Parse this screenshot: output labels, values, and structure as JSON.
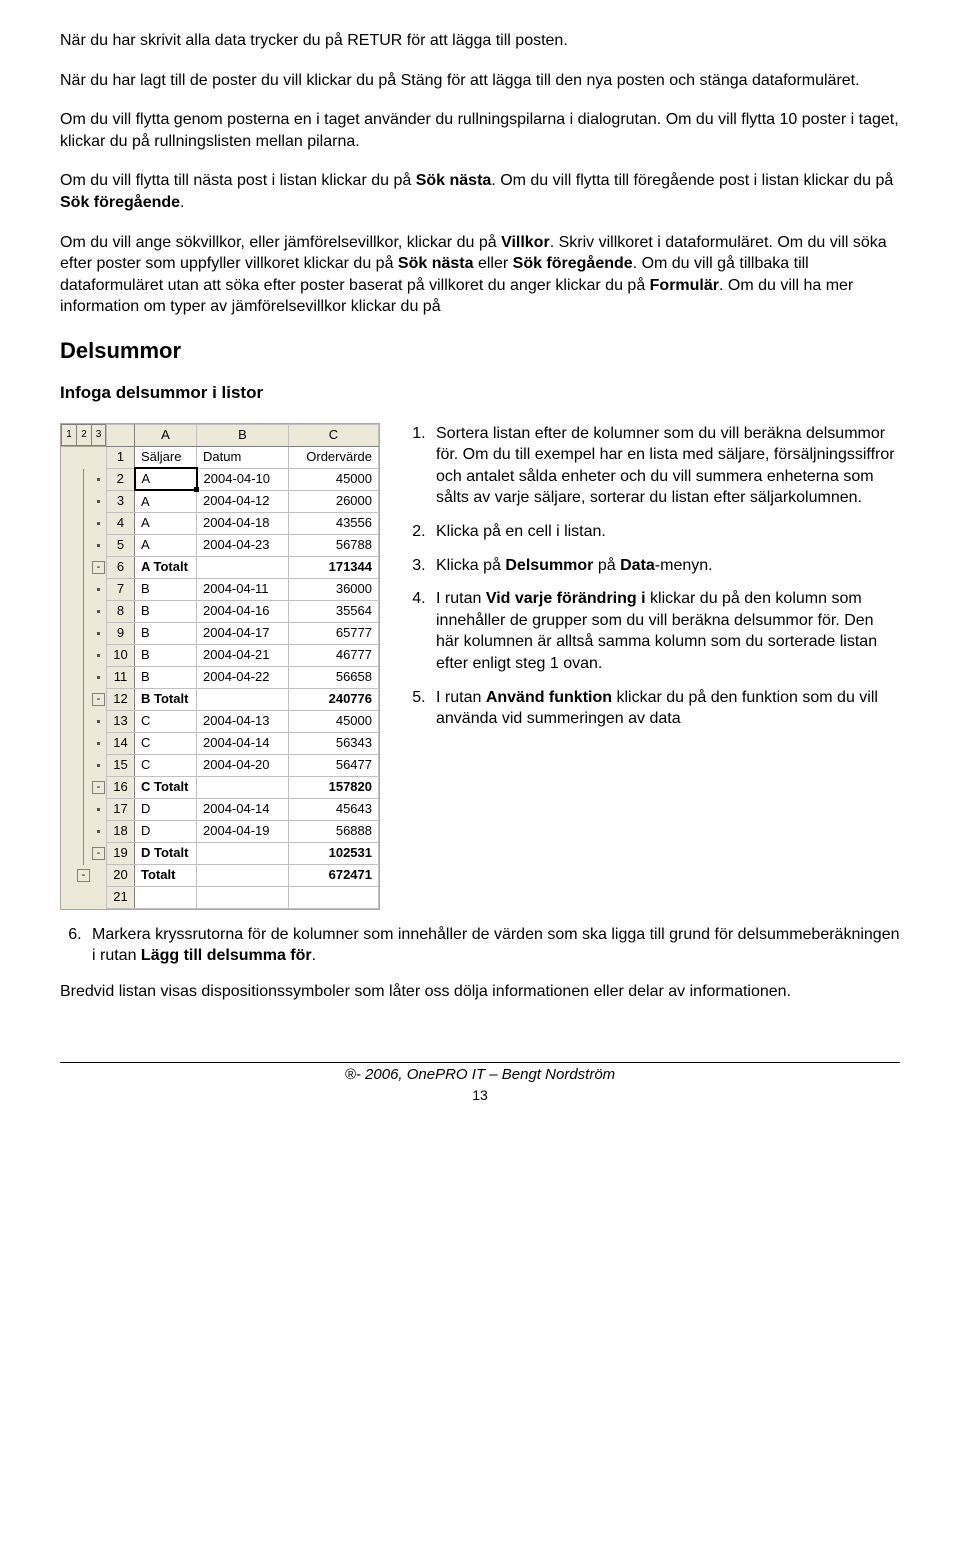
{
  "paras": {
    "p1": "När du har skrivit alla data trycker du på RETUR för att lägga till posten.",
    "p2": "När du har lagt till de poster du vill klickar du på Stäng för att lägga till den nya posten och stänga dataformuläret.",
    "p3": "Om du vill flytta genom posterna en i taget använder du rullningspilarna i dialogrutan. Om du vill flytta 10 poster i taget, klickar du på rullningslisten mellan pilarna.",
    "p4a": "Om du vill flytta till nästa post i listan klickar du på ",
    "p4b": "Sök nästa",
    "p4c": ". Om du vill flytta till föregående post i listan klickar du på ",
    "p4d": "Sök föregående",
    "p4e": ".",
    "p5a": "Om du vill ange sökvillkor, eller jämförelsevillkor, klickar du på ",
    "p5b": "Villkor",
    "p5c": ". Skriv villkoret i dataformuläret. Om du vill söka efter poster som uppfyller villkoret klickar du på ",
    "p5d": "Sök nästa",
    "p5e": " eller ",
    "p5f": "Sök föregående",
    "p5g": ". Om du vill gå tillbaka till dataformuläret utan att söka efter poster baserat på villkoret du anger klickar du på ",
    "p5h": "Formulär",
    "p5i": ". Om du vill ha mer information om typer av jämförelsevillkor klickar du på"
  },
  "h2": "Delsummor",
  "h3": "Infoga delsummor i listor",
  "steps": {
    "s1": "Sortera listan efter de kolumner som du vill beräkna delsummor för. Om du till exempel har en lista med säljare, försäljningssiffror och antalet sålda enheter och du vill summera enheterna som sålts av varje säljare, sorterar du listan efter säljarkolumnen.",
    "s2": "Klicka på en cell i listan.",
    "s3a": "Klicka på ",
    "s3b": "Delsummor",
    "s3c": " på ",
    "s3d": "Data",
    "s3e": "-menyn.",
    "s4a": "I rutan ",
    "s4b": "Vid varje förändring i",
    "s4c": " klickar du på den kolumn som innehåller de grupper som du vill beräkna delsummor för. Den här kolumnen är alltså samma kolumn som du sorterade listan efter enligt steg 1 ovan.",
    "s5a": "I rutan ",
    "s5b": "Använd funktion",
    "s5c": " klickar du på den funktion som du vill använda vid summeringen av data",
    "s6a": "Markera kryssrutorna för de kolumner som innehåller de värden som ska ligga till grund för delsummeberäkningen i rutan ",
    "s6b": "Lägg till delsumma för",
    "s6c": "."
  },
  "p_after": "Bredvid listan visas dispositionssymboler som låter oss dölja informationen eller delar av informationen.",
  "footer": "®- 2006, OnePRO IT – Bengt Nordström",
  "page": "13",
  "sheet": {
    "outline_levels": [
      "1",
      "2",
      "3"
    ],
    "cols": [
      "A",
      "B",
      "C"
    ],
    "headers": [
      "Säljare",
      "Datum",
      "Ordervärde"
    ],
    "rows": [
      {
        "n": 1,
        "hdr": true
      },
      {
        "n": 2,
        "a": "A",
        "b": "2004-04-10",
        "c": "45000",
        "sel": true,
        "dot": true
      },
      {
        "n": 3,
        "a": "A",
        "b": "2004-04-12",
        "c": "26000",
        "dot": true
      },
      {
        "n": 4,
        "a": "A",
        "b": "2004-04-18",
        "c": "43556",
        "dot": true
      },
      {
        "n": 5,
        "a": "A",
        "b": "2004-04-23",
        "c": "56788",
        "dot": true
      },
      {
        "n": 6,
        "a": "A Totalt",
        "b": "",
        "c": "171344",
        "bold": true,
        "minus": 3
      },
      {
        "n": 7,
        "a": "B",
        "b": "2004-04-11",
        "c": "36000",
        "dot": true
      },
      {
        "n": 8,
        "a": "B",
        "b": "2004-04-16",
        "c": "35564",
        "dot": true
      },
      {
        "n": 9,
        "a": "B",
        "b": "2004-04-17",
        "c": "65777",
        "dot": true
      },
      {
        "n": 10,
        "a": "B",
        "b": "2004-04-21",
        "c": "46777",
        "dot": true
      },
      {
        "n": 11,
        "a": "B",
        "b": "2004-04-22",
        "c": "56658",
        "dot": true
      },
      {
        "n": 12,
        "a": "B Totalt",
        "b": "",
        "c": "240776",
        "bold": true,
        "minus": 3
      },
      {
        "n": 13,
        "a": "C",
        "b": "2004-04-13",
        "c": "45000",
        "dot": true
      },
      {
        "n": 14,
        "a": "C",
        "b": "2004-04-14",
        "c": "56343",
        "dot": true
      },
      {
        "n": 15,
        "a": "C",
        "b": "2004-04-20",
        "c": "56477",
        "dot": true
      },
      {
        "n": 16,
        "a": "C Totalt",
        "b": "",
        "c": "157820",
        "bold": true,
        "minus": 3
      },
      {
        "n": 17,
        "a": "D",
        "b": "2004-04-14",
        "c": "45643",
        "dot": true
      },
      {
        "n": 18,
        "a": "D",
        "b": "2004-04-19",
        "c": "56888",
        "dot": true
      },
      {
        "n": 19,
        "a": "D Totalt",
        "b": "",
        "c": "102531",
        "bold": true,
        "minus": 3
      },
      {
        "n": 20,
        "a": "Totalt",
        "b": "",
        "c": "672471",
        "bold": true,
        "minus": 2
      },
      {
        "n": 21,
        "a": "",
        "b": "",
        "c": ""
      }
    ]
  }
}
